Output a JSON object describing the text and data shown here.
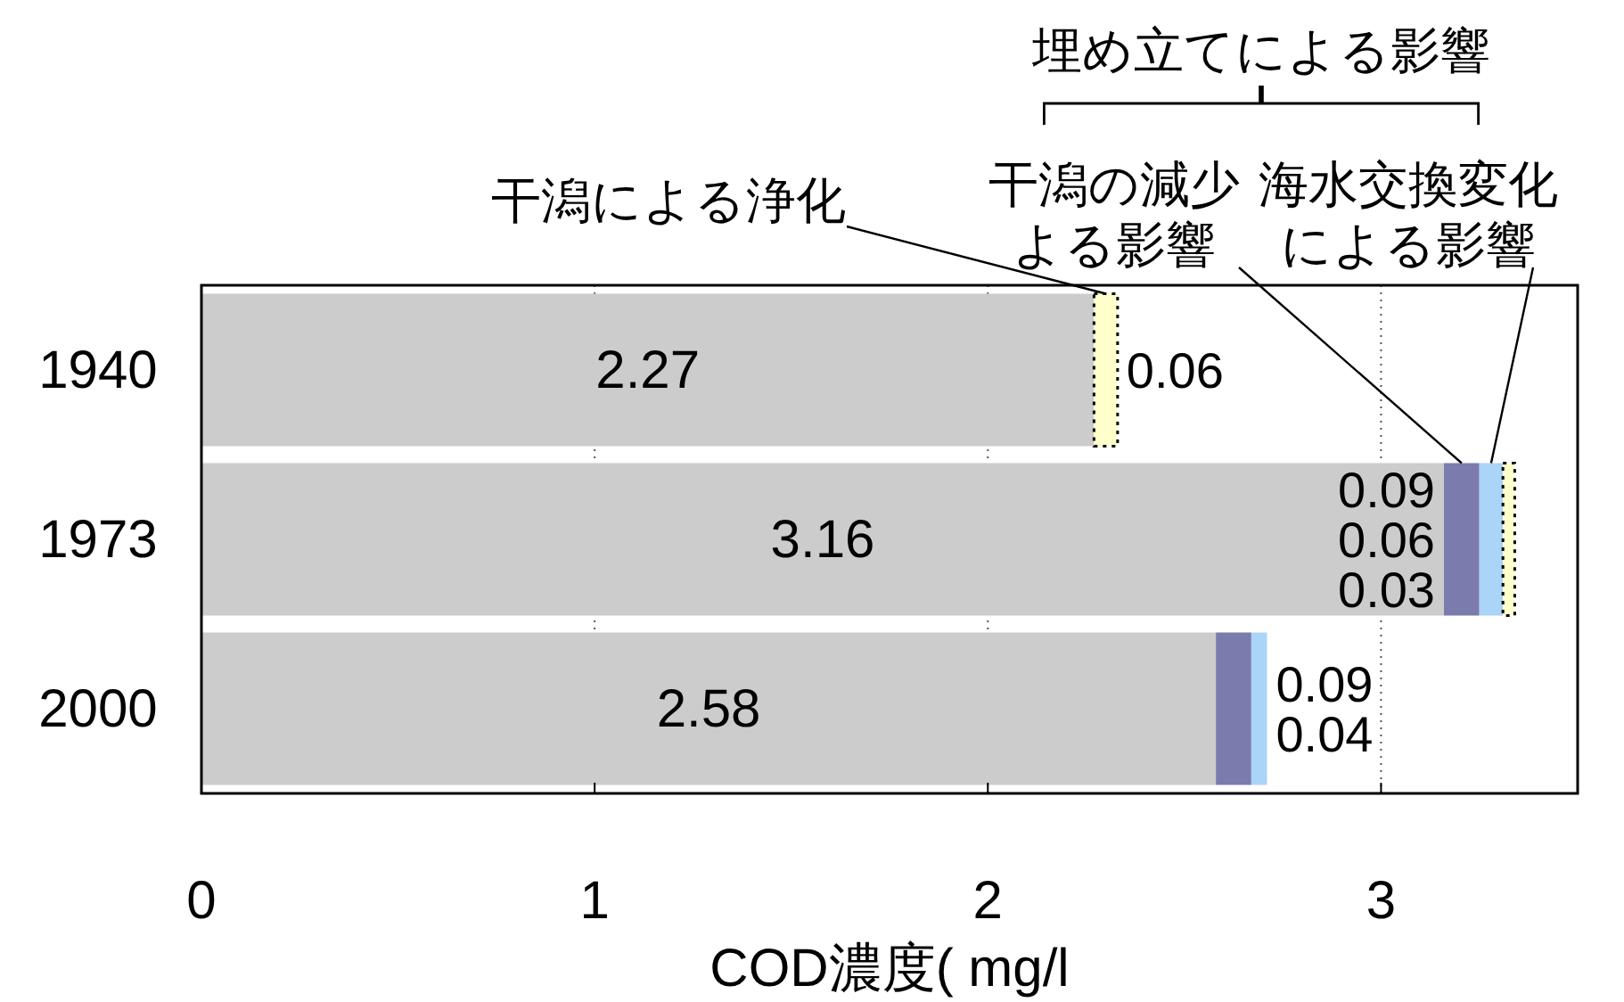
{
  "chart_data": {
    "type": "bar",
    "orientation": "horizontal",
    "stacked": true,
    "categories": [
      "1940",
      "1973",
      "2000"
    ],
    "series": [
      {
        "color": "#cccccc",
        "values": [
          2.27,
          3.16,
          2.58
        ]
      },
      {
        "name": "干潟の減少よる影響",
        "color": "#7b7bad",
        "values": [
          null,
          0.09,
          0.09
        ]
      },
      {
        "name": "海水交換変化による影響",
        "color": "#aad4f8",
        "values": [
          null,
          0.06,
          0.04
        ]
      },
      {
        "name": "干潟による浄化",
        "color": "#ffffcc",
        "values": [
          0.06,
          0.03,
          null
        ]
      }
    ],
    "xlim": [
      0,
      3.5
    ],
    "xticks": [
      0,
      1,
      2,
      3
    ],
    "xlabel": "COD濃度( mg/l",
    "grid": "x",
    "data_labels": true,
    "annotations": [
      "埋め立てによる影響"
    ]
  }
}
